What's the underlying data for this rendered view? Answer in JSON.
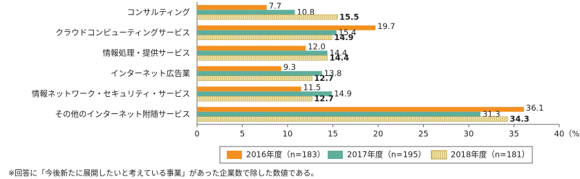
{
  "chart_data": {
    "type": "hbar",
    "categories": [
      "コンサルティング",
      "クラウドコンピューティングサービス",
      "情報処理・提供サービス",
      "インターネット広告業",
      "情報ネットワーク・セキュリティ・サービス",
      "その他のインターネット附随サービス"
    ],
    "series": [
      {
        "name": "2016年度（n=183）",
        "color": "#f39020",
        "values": [
          7.7,
          19.7,
          12.0,
          9.3,
          11.5,
          36.1
        ],
        "value_labels": [
          "7.7",
          "19.7",
          "12.0",
          "9.3",
          "11.5",
          "36.1"
        ]
      },
      {
        "name": "2017年度（n=195）",
        "color": "#5fae9c",
        "values": [
          10.8,
          15.4,
          14.4,
          13.8,
          14.9,
          31.3
        ]
      },
      {
        "name": "2018年度（n=181）",
        "color": "#f2e3a2",
        "values": [
          15.5,
          14.9,
          14.4,
          12.7,
          12.7,
          34.3
        ]
      }
    ],
    "xlim": [
      0,
      40
    ],
    "xticks": [
      0,
      5,
      10,
      15,
      20,
      25,
      30,
      35,
      40
    ],
    "x_unit": "（%）",
    "footnote": "※回答に「今後新たに展開したいと考えている事業」があった企業数で除した数値である。"
  }
}
